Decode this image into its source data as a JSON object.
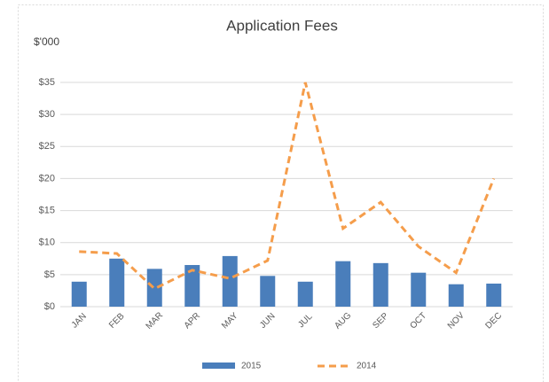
{
  "chart_data": {
    "type": "bar_line",
    "title": "Application Fees",
    "y_label": "$'000",
    "categories": [
      "JAN",
      "FEB",
      "MAR",
      "APR",
      "MAY",
      "JUN",
      "JUL",
      "AUG",
      "SEP",
      "OCT",
      "NOV",
      "DEC"
    ],
    "series": [
      {
        "name": "2015",
        "type": "bar",
        "color": "#4a7ebb",
        "values": [
          3.9,
          7.5,
          5.9,
          6.5,
          7.9,
          4.8,
          3.9,
          7.1,
          6.8,
          5.3,
          3.5,
          3.6
        ]
      },
      {
        "name": "2014",
        "type": "line",
        "color": "#f59d4b",
        "values": [
          8.6,
          8.3,
          2.8,
          5.7,
          4.4,
          7.2,
          35,
          12.2,
          16.3,
          9.4,
          5.3,
          20
        ]
      }
    ],
    "ylim": [
      0,
      35
    ],
    "yticks": [
      {
        "value": 0,
        "label": "$0"
      },
      {
        "value": 5,
        "label": "$5"
      },
      {
        "value": 10,
        "label": "$10"
      },
      {
        "value": 15,
        "label": "$15"
      },
      {
        "value": 20,
        "label": "$20"
      },
      {
        "value": 25,
        "label": "$25"
      },
      {
        "value": 30,
        "label": "$30"
      },
      {
        "value": 35,
        "label": "$35"
      }
    ],
    "grid": true,
    "legend": "bottom"
  }
}
